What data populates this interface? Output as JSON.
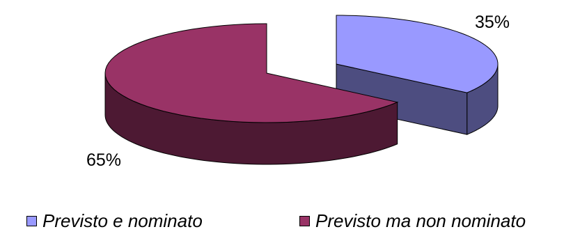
{
  "chart_data": {
    "type": "pie",
    "style": "3d-exploded",
    "categories": [
      "Previsto e nominato",
      "Previsto ma non nominato"
    ],
    "values": [
      35,
      65
    ],
    "data_labels": [
      "35%",
      "65%"
    ],
    "colors": {
      "Previsto e nominato": {
        "top": "#9999ff",
        "side": "#4d4d80"
      },
      "Previsto ma non nominato": {
        "top": "#993366",
        "side": "#4d1933"
      }
    },
    "legend_position": "bottom",
    "title": ""
  }
}
